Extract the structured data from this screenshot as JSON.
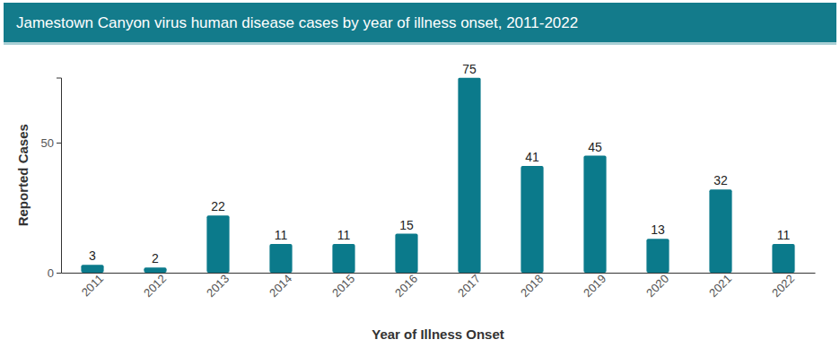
{
  "chart_data": {
    "type": "bar",
    "title": "Jamestown Canyon virus human disease cases by year of illness onset, 2011-2022",
    "x_label": "Year of Illness Onset",
    "y_label": "Reported Cases",
    "categories": [
      "2011",
      "2012",
      "2013",
      "2014",
      "2015",
      "2016",
      "2017",
      "2018",
      "2019",
      "2020",
      "2021",
      "2022"
    ],
    "values": [
      3,
      2,
      22,
      11,
      11,
      15,
      75,
      41,
      45,
      13,
      32,
      11
    ],
    "color": "#0b7a8b",
    "ylim": [
      0,
      75
    ],
    "yticks": [
      0,
      50
    ],
    "grid": false,
    "data_labels": true
  }
}
